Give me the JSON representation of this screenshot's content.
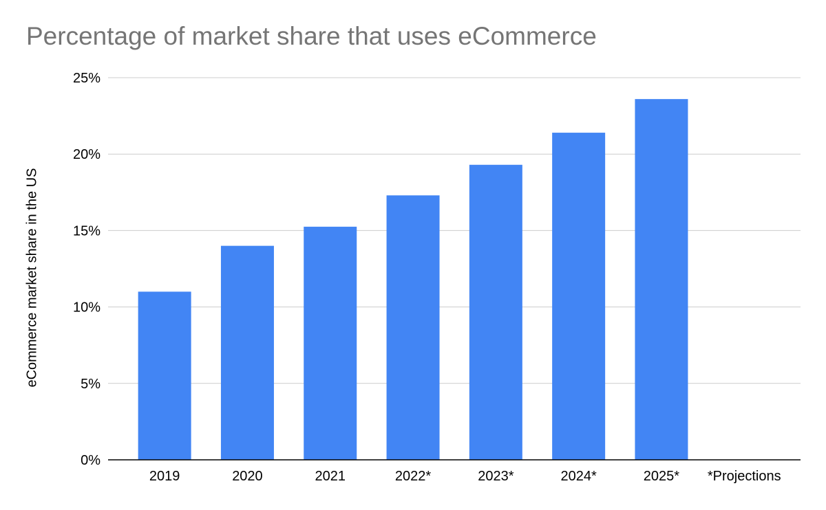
{
  "chart_data": {
    "type": "bar",
    "title": "Percentage of market share that uses eCommerce",
    "xlabel": "",
    "ylabel": "eCommerce market share in the US",
    "categories": [
      "2019",
      "2020",
      "2021",
      "2022*",
      "2023*",
      "2024*",
      "2025*",
      "*Projections"
    ],
    "series": [
      {
        "values": [
          11.0,
          14.0,
          15.25,
          17.3,
          19.3,
          21.4,
          23.6,
          null
        ]
      }
    ],
    "ylim": [
      0,
      25
    ],
    "yticks": [
      0,
      5,
      10,
      15,
      20,
      25
    ],
    "ytick_labels": [
      "0%",
      "5%",
      "10%",
      "15%",
      "20%",
      "25%"
    ],
    "grid": true,
    "legend": "none",
    "bar_color": "#4285f4",
    "grid_color": "#cccccc",
    "axis_color": "#000000",
    "title_color": "#757575"
  }
}
